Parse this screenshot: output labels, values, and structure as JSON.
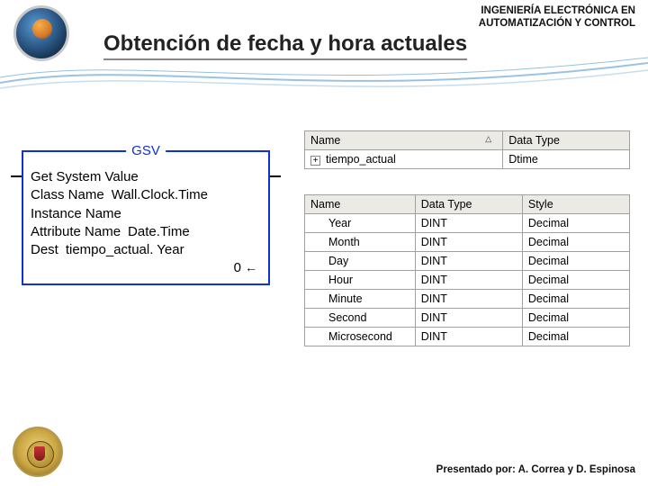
{
  "header": {
    "subtitle_line1": "INGENIERÍA ELECTRÓNICA EN",
    "subtitle_line2": "AUTOMATIZACIÓN Y CONTROL",
    "title": "Obtención de fecha y hora actuales"
  },
  "gsv": {
    "legend": "GSV",
    "line1": "Get System Value",
    "rows": [
      {
        "label": "Class Name",
        "value": "Wall.Clock.Time"
      },
      {
        "label": "Instance Name",
        "value": ""
      },
      {
        "label": "Attribute Name",
        "value": "Date.Time"
      },
      {
        "label": "Dest",
        "value": "tiempo_actual. Year"
      }
    ],
    "result": "0",
    "arrow": "←"
  },
  "table1": {
    "columns": {
      "name": "Name",
      "datatype": "Data Type"
    },
    "sort_glyph": "△",
    "row": {
      "expander": "+",
      "name": "tiempo_actual",
      "datatype": "Dtime"
    }
  },
  "table2": {
    "columns": {
      "name": "Name",
      "datatype": "Data Type",
      "style": "Style"
    },
    "rows": [
      {
        "name": "Year",
        "datatype": "DINT",
        "style": "Decimal"
      },
      {
        "name": "Month",
        "datatype": "DINT",
        "style": "Decimal"
      },
      {
        "name": "Day",
        "datatype": "DINT",
        "style": "Decimal"
      },
      {
        "name": "Hour",
        "datatype": "DINT",
        "style": "Decimal"
      },
      {
        "name": "Minute",
        "datatype": "DINT",
        "style": "Decimal"
      },
      {
        "name": "Second",
        "datatype": "DINT",
        "style": "Decimal"
      },
      {
        "name": "Microsecond",
        "datatype": "DINT",
        "style": "Decimal"
      }
    ]
  },
  "footer": "Presentado por: A. Correa y D. Espinosa"
}
